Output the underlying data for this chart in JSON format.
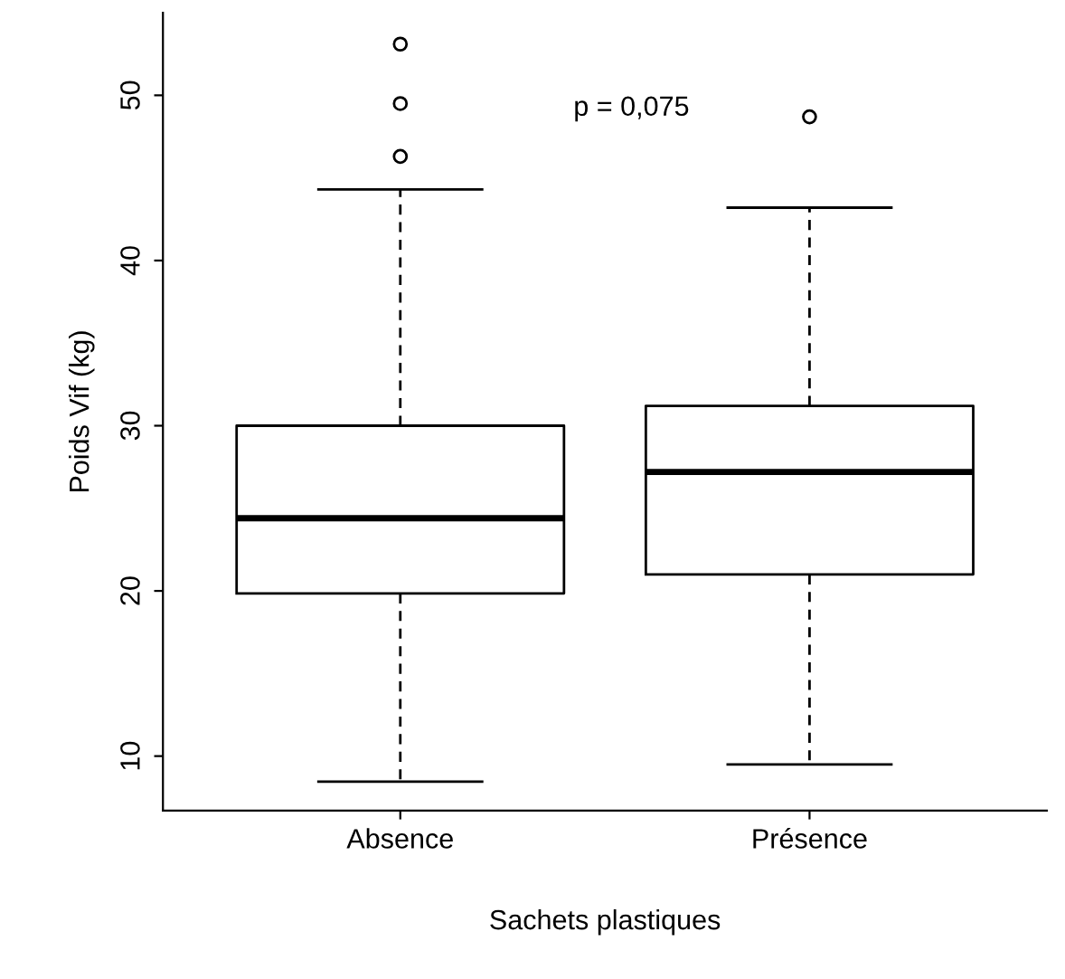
{
  "chart_data": {
    "type": "box",
    "xlabel": "Sachets plastiques",
    "ylabel": "Poids Vif (kg)",
    "categories": [
      "Absence",
      "Présence"
    ],
    "boxes": [
      {
        "low": 8.45,
        "q1": 19.85,
        "median": 24.4,
        "q3": 30.0,
        "high": 44.3,
        "outliers": [
          46.3,
          49.5,
          53.1
        ]
      },
      {
        "low": 9.5,
        "q1": 21.0,
        "median": 27.2,
        "q3": 31.2,
        "high": 43.2,
        "outliers": [
          48.7
        ]
      }
    ],
    "ylim": [
      6.7,
      55
    ],
    "yticks": [
      10,
      20,
      30,
      40,
      50
    ],
    "annotations": [
      "p = 0,075"
    ],
    "grid": false,
    "legend": false
  }
}
